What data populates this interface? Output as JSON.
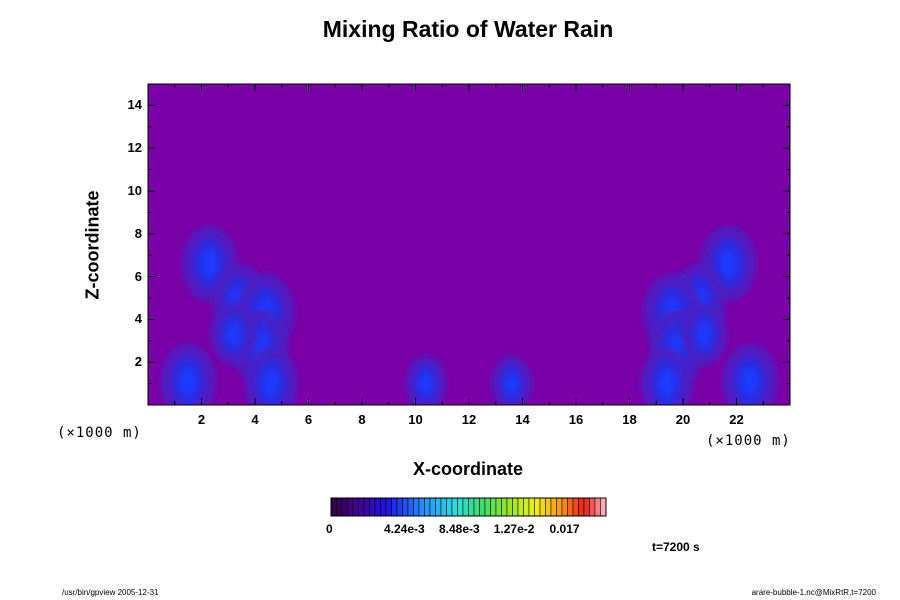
{
  "chart_data": {
    "type": "heatmap",
    "title": "Mixing Ratio of Water Rain",
    "xlabel": "X-coordinate",
    "ylabel": "Z-coordinate",
    "x_unit": "(×1000 m)",
    "xlim": [
      0,
      24
    ],
    "ylim": [
      0,
      15
    ],
    "x_ticks": [
      2,
      4,
      6,
      8,
      10,
      12,
      14,
      16,
      18,
      20,
      22
    ],
    "y_ticks": [
      2,
      4,
      6,
      8,
      10,
      12,
      14
    ],
    "colorbar": {
      "range": [
        0,
        0.0212
      ],
      "tick_labels": [
        "0",
        "4.24e-3",
        "8.48e-3",
        "1.27e-2",
        "0.017"
      ]
    },
    "rain_cores": [
      {
        "x": 2.3,
        "z": 6.6,
        "level": 0.6
      },
      {
        "x": 3.4,
        "z": 4.9,
        "level": 0.55
      },
      {
        "x": 4.4,
        "z": 4.3,
        "level": 0.65
      },
      {
        "x": 4.2,
        "z": 2.7,
        "level": 0.6
      },
      {
        "x": 4.6,
        "z": 1.0,
        "level": 0.55
      },
      {
        "x": 1.5,
        "z": 1.1,
        "level": 0.6
      },
      {
        "x": 3.2,
        "z": 3.3,
        "level": 0.4
      },
      {
        "x": 21.7,
        "z": 6.6,
        "level": 0.6
      },
      {
        "x": 20.6,
        "z": 4.9,
        "level": 0.55
      },
      {
        "x": 19.6,
        "z": 4.3,
        "level": 0.65
      },
      {
        "x": 19.8,
        "z": 2.7,
        "level": 0.6
      },
      {
        "x": 19.4,
        "z": 1.0,
        "level": 0.55
      },
      {
        "x": 22.5,
        "z": 1.1,
        "level": 0.6
      },
      {
        "x": 20.8,
        "z": 3.3,
        "level": 0.4
      },
      {
        "x": 10.4,
        "z": 1.0,
        "level": 0.3
      },
      {
        "x": 13.6,
        "z": 1.0,
        "level": 0.3
      }
    ],
    "time": "t=7200 s"
  },
  "footer": {
    "left": "/usr/bin/gpview 2005-12-31",
    "right": "arare-bubble-1.nc@MixRtR,t=7200"
  },
  "colors": {
    "background_field": "#7a00a8",
    "rain_low": "#4b1ec4",
    "rain_mid": "#2a2ee6",
    "rain_high": "#1a3cff"
  }
}
